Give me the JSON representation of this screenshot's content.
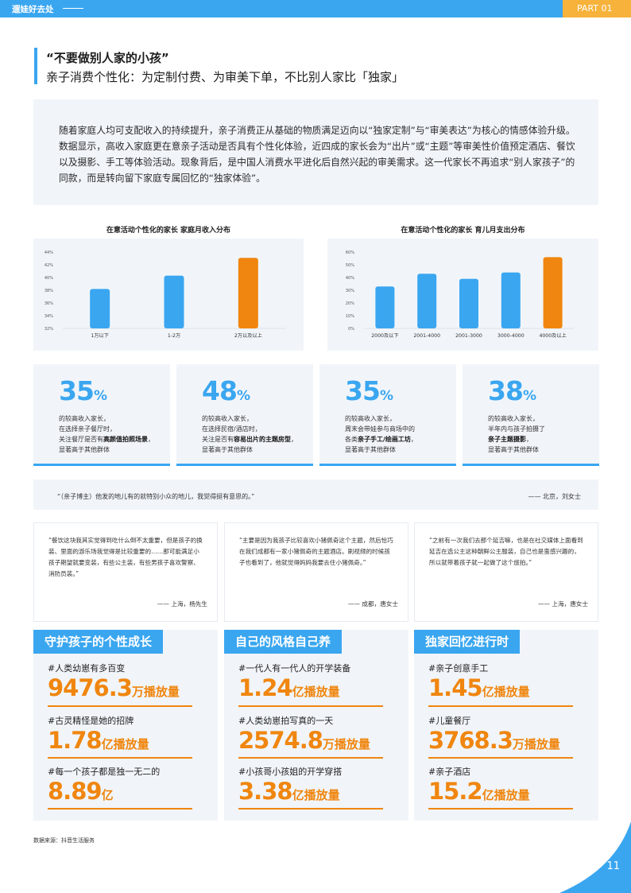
{
  "header": {
    "brand": "遛娃好去处",
    "part": "PART 01"
  },
  "title": {
    "line1": "“不要做别人家的小孩”",
    "line2": "亲子消费个性化：为定制付费、为审美下单，不比别人家比「独家」"
  },
  "intro": "随着家庭人均可支配收入的持续提升，亲子消费正从基础的物质满足迈向以“独家定制”与“审美表达”为核心的情感体验升级。数据显示，高收入家庭更在意亲子活动是否具有个性化体验，近四成的家长会为“出片”或“主题”等审美性价值预定酒店、餐饮以及摄影、手工等体验活动。现象背后，是中国人消费水平进化后自然兴起的审美需求。这一代家长不再追求“别人家孩子”的同款，而是转向留下家庭专属回忆的“独家体验”。",
  "chart_data": [
    {
      "type": "bar",
      "title": "在意活动个性化的家长 家庭月收入分布",
      "categories": [
        "1万以下",
        "1-2万",
        "2万以及以上"
      ],
      "values": [
        38.2,
        40.3,
        43.1
      ],
      "ylim": [
        32,
        44
      ],
      "yticks": [
        "32%",
        "34%",
        "36%",
        "38%",
        "40%",
        "42%",
        "44%"
      ],
      "colors": [
        "#3aa6f0",
        "#3aa6f0",
        "#f0860f"
      ]
    },
    {
      "type": "bar",
      "title": "在意活动个性化的家长 育儿月支出分布",
      "categories": [
        "2000及以下",
        "2001-4000",
        "2001-3000",
        "3000-4000",
        "4000及以上"
      ],
      "values": [
        33,
        43,
        39,
        44,
        56
      ],
      "ylim": [
        0,
        60
      ],
      "yticks": [
        "0%",
        "10%",
        "20%",
        "30%",
        "40%",
        "50%",
        "60%"
      ],
      "colors": [
        "#3aa6f0",
        "#3aa6f0",
        "#3aa6f0",
        "#3aa6f0",
        "#f0860f"
      ]
    }
  ],
  "stats": [
    {
      "num": "35",
      "pct": "%",
      "l1": "的较高收入家长，",
      "l2": "在选择亲子餐厅时，",
      "l3a": "关注餐厅是否有",
      "l3b": "高颜值拍照场景",
      "l3c": "，",
      "l4": "显著高于其他群体"
    },
    {
      "num": "48",
      "pct": "%",
      "l1": "的较高收入家长，",
      "l2": "在选择民宿/酒店时，",
      "l3a": "关注是否有",
      "l3b": "容易出片的主题房型",
      "l3c": "，",
      "l4": "显著高于其他群体"
    },
    {
      "num": "35",
      "pct": "%",
      "l1": "的较高收入家长，",
      "l2": "周末会带娃参与商场中的",
      "l3a": "各类",
      "l3b": "亲子手工/绘画工坊",
      "l3c": "，",
      "l4": "显著高于其他群体"
    },
    {
      "num": "38",
      "pct": "%",
      "l1": "的较高收入家长，",
      "l2": "半年内与孩子拍摄了",
      "l3a": "",
      "l3b": "亲子主题摄影",
      "l3c": "，",
      "l4": "显著高于其他群体"
    }
  ],
  "quote_top": {
    "text": "“（亲子博主）他发的地儿有的就特别小众的地儿，我觉得挺有意思的。”",
    "author": "—— 北京，刘女士"
  },
  "quotes": [
    {
      "text": "“餐饮这块我其实觉得到吃什么倒不太重要，但是孩子的换装、里面的游乐场我觉得是比较重要的……那可能满足小孩子期望就要变装，有些公主装，有些男孩子喜欢警察、消防员装。”",
      "author": "—— 上海，杨先生"
    },
    {
      "text": "“主要是因为我孩子比较喜欢小猪佩奇这个主题，然后恰巧在我们成都有一家小猪佩奇的主题酒店。刷视频的时候孩子也看到了，他就觉得妈妈我要去住小猪佩奇。”",
      "author": "—— 成都，唐女士"
    },
    {
      "text": "“之前有一次我们去那个延吉嘛，也是在社交媒体上面看到延吉在选公主这种朝鲜公主服装，自己也是蛮感兴趣的，所以就带着孩子就一起做了这个旅拍。”",
      "author": "—— 上海，唐女士"
    }
  ],
  "panels": [
    {
      "title": "守护孩子的个性成长",
      "items": [
        {
          "tag": "#人类幼崽有多百变",
          "num": "9476.3",
          "unit": "万播放量"
        },
        {
          "tag": "#古灵精怪是她的招牌",
          "num": "1.78",
          "unit": "亿播放量"
        },
        {
          "tag": "#每一个孩子都是独一无二的",
          "num": "8.89",
          "unit": "亿"
        }
      ]
    },
    {
      "title": "自己的风格自己养",
      "items": [
        {
          "tag": "#一代人有一代人的开学装备",
          "num": "1.24",
          "unit": "亿播放量"
        },
        {
          "tag": "#人类幼崽拍写真的一天",
          "num": "2574.8",
          "unit": "万播放量"
        },
        {
          "tag": "#小孩哥小孩姐的开学穿搭",
          "num": "3.38",
          "unit": "亿播放量"
        }
      ]
    },
    {
      "title": "独家回忆进行时",
      "items": [
        {
          "tag": "#亲子创意手工",
          "num": "1.45",
          "unit": "亿播放量"
        },
        {
          "tag": "#儿童餐厅",
          "num": "3768.3",
          "unit": "万播放量"
        },
        {
          "tag": "#亲子酒店",
          "num": "15.2",
          "unit": "亿播放量"
        }
      ]
    }
  ],
  "source": "数据来源：抖音生活服务",
  "page_number": "11",
  "colors": {
    "blue": "#3aa6f0",
    "orange": "#f0860f",
    "yellow": "#f7b23b",
    "panel": "#f1f5fa"
  }
}
